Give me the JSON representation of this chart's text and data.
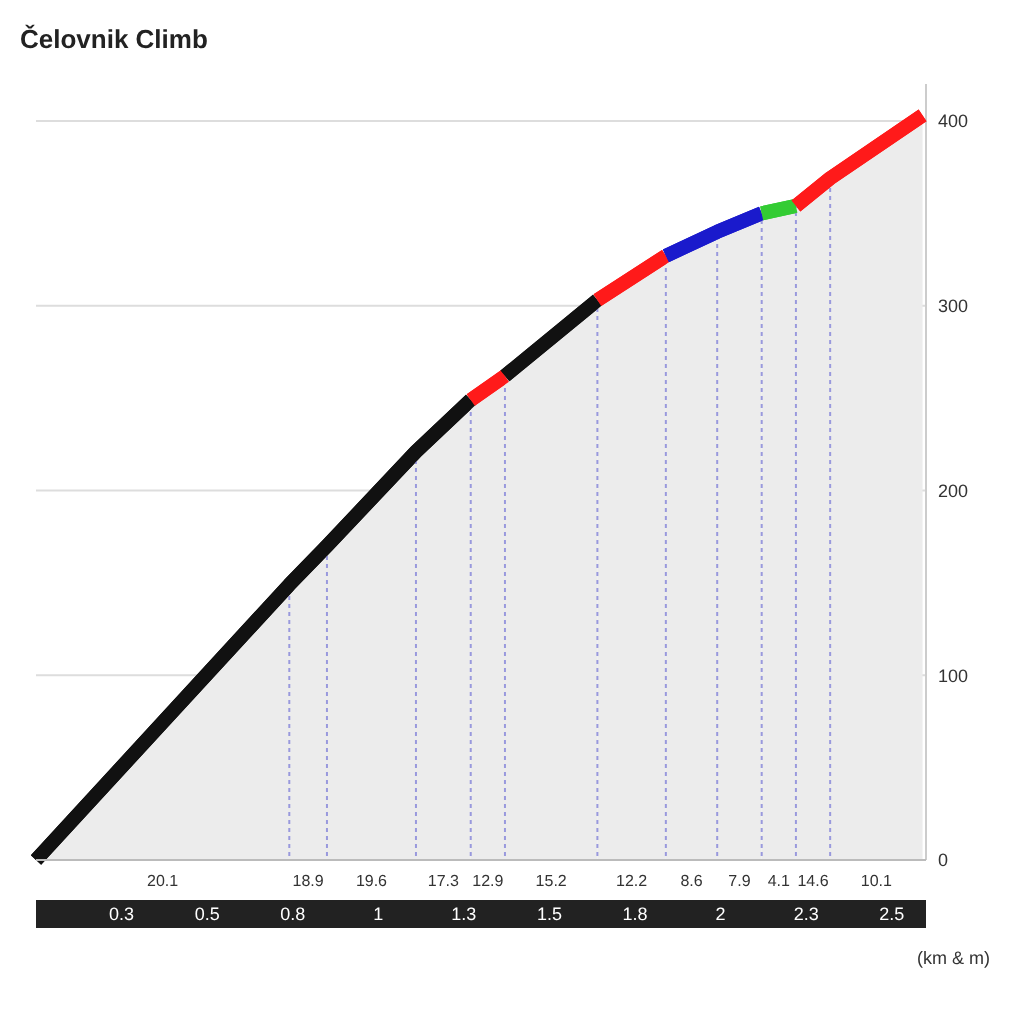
{
  "chart_data": {
    "type": "area",
    "title": "Čelovnik Climb",
    "xlim": [
      0,
      2.6
    ],
    "ylim": [
      0,
      420
    ],
    "xticks": [
      {
        "value": 0.25,
        "label": "0.3"
      },
      {
        "value": 0.5,
        "label": "0.5"
      },
      {
        "value": 0.75,
        "label": "0.8"
      },
      {
        "value": 1,
        "label": "1"
      },
      {
        "value": 1.25,
        "label": "1.3"
      },
      {
        "value": 1.5,
        "label": "1.5"
      },
      {
        "value": 1.75,
        "label": "1.8"
      },
      {
        "value": 2,
        "label": "2"
      },
      {
        "value": 2.25,
        "label": "2.3"
      },
      {
        "value": 2.5,
        "label": "2.5"
      }
    ],
    "yticks": [
      0,
      100,
      200,
      300,
      400
    ],
    "grid": "y",
    "series": [
      {
        "color": "#111111",
        "x": [
          0,
          0.74,
          0.85,
          1.11,
          1.27
        ],
        "values": [
          0,
          149,
          170,
          221,
          249
        ]
      },
      {
        "color": "#ff1a1a",
        "x": [
          1.27,
          1.37
        ],
        "values": [
          249,
          262
        ]
      },
      {
        "color": "#111111",
        "x": [
          1.37,
          1.64
        ],
        "values": [
          262,
          303
        ]
      },
      {
        "color": "#ff1a1a",
        "x": [
          1.64,
          1.84
        ],
        "values": [
          303,
          327
        ]
      },
      {
        "color": "#1a1acc",
        "x": [
          1.84,
          1.99,
          2.12
        ],
        "values": [
          327,
          340,
          350
        ]
      },
      {
        "color": "#33cc33",
        "x": [
          2.12,
          2.22
        ],
        "values": [
          350,
          354
        ]
      },
      {
        "color": "#ff1a1a",
        "x": [
          2.22,
          2.32,
          2.59
        ],
        "values": [
          354,
          369,
          403
        ]
      }
    ],
    "ref_lines": [
      {
        "axis": "x",
        "value": 0.74,
        "line_style": "dotted",
        "color": "#9999dd"
      },
      {
        "axis": "x",
        "value": 0.85,
        "line_style": "dotted",
        "color": "#9999dd"
      },
      {
        "axis": "x",
        "value": 1.11,
        "line_style": "dotted",
        "color": "#9999dd"
      },
      {
        "axis": "x",
        "value": 1.27,
        "line_style": "dotted",
        "color": "#9999dd"
      },
      {
        "axis": "x",
        "value": 1.37,
        "line_style": "dotted",
        "color": "#9999dd"
      },
      {
        "axis": "x",
        "value": 1.64,
        "line_style": "dotted",
        "color": "#9999dd"
      },
      {
        "axis": "x",
        "value": 1.84,
        "line_style": "dotted",
        "color": "#9999dd"
      },
      {
        "axis": "x",
        "value": 1.99,
        "line_style": "dotted",
        "color": "#9999dd"
      },
      {
        "axis": "x",
        "value": 2.12,
        "line_style": "dotted",
        "color": "#9999dd"
      },
      {
        "axis": "x",
        "value": 2.22,
        "line_style": "dotted",
        "color": "#9999dd"
      },
      {
        "axis": "x",
        "value": 2.32,
        "line_style": "dotted",
        "color": "#9999dd"
      }
    ],
    "annotations": [
      {
        "text": "20.1",
        "x": 0.37,
        "y": 0
      },
      {
        "text": "18.9",
        "x": 0.795,
        "y": 0
      },
      {
        "text": "19.6",
        "x": 0.98,
        "y": 0
      },
      {
        "text": "17.3",
        "x": 1.19,
        "y": 0
      },
      {
        "text": "12.9",
        "x": 1.32,
        "y": 0
      },
      {
        "text": "15.2",
        "x": 1.505,
        "y": 0
      },
      {
        "text": "12.2",
        "x": 1.74,
        "y": 0
      },
      {
        "text": "8.6",
        "x": 1.915,
        "y": 0
      },
      {
        "text": "7.9",
        "x": 2.055,
        "y": 0
      },
      {
        "text": "4.1",
        "x": 2.17,
        "y": 0
      },
      {
        "text": "14.6",
        "x": 2.27,
        "y": 0
      },
      {
        "text": "10.1",
        "x": 2.455,
        "y": 0
      },
      "(km & m)"
    ]
  }
}
